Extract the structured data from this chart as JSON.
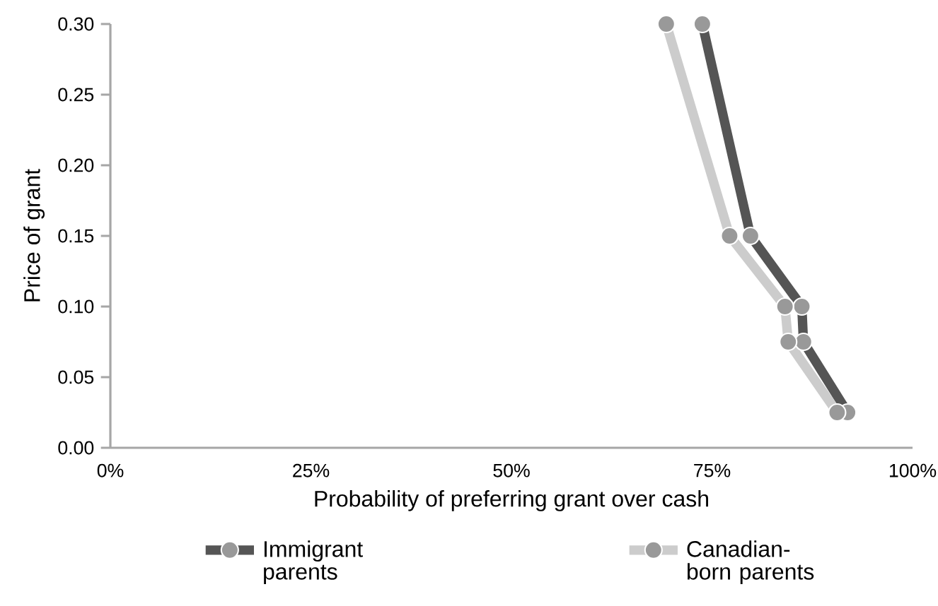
{
  "chart_data": {
    "type": "line",
    "xlabel": "Probability of preferring grant over cash",
    "ylabel": "Price of grant",
    "xlim": [
      0,
      100
    ],
    "ylim": [
      0,
      0.3
    ],
    "xticks": [
      {
        "value": 0,
        "label": "0%"
      },
      {
        "value": 25,
        "label": "25%"
      },
      {
        "value": 50,
        "label": "50%"
      },
      {
        "value": 75,
        "label": "75%"
      },
      {
        "value": 100,
        "label": "100%"
      }
    ],
    "yticks": [
      {
        "value": 0,
        "label": "0.00"
      },
      {
        "value": 0.05,
        "label": "0.05"
      },
      {
        "value": 0.1,
        "label": "0.10"
      },
      {
        "value": 0.15,
        "label": "0.15"
      },
      {
        "value": 0.2,
        "label": "0.20"
      },
      {
        "value": 0.25,
        "label": "0.25"
      },
      {
        "value": 0.3,
        "label": "0.30"
      }
    ],
    "marker": "circle",
    "legend": "bottom",
    "grid": false,
    "series": [
      {
        "name": "Immigrant parents",
        "color": "#555555",
        "x": [
          73.8,
          79.8,
          86.2,
          86.4,
          91.9
        ],
        "values": [
          0.3,
          0.15,
          0.1,
          0.075,
          0.025
        ]
      },
      {
        "name": "Canadian-born parents",
        "color": "#cccccc",
        "x": [
          69.3,
          77.2,
          84.1,
          84.5,
          90.6
        ],
        "values": [
          0.3,
          0.15,
          0.1,
          0.075,
          0.025
        ]
      }
    ]
  }
}
